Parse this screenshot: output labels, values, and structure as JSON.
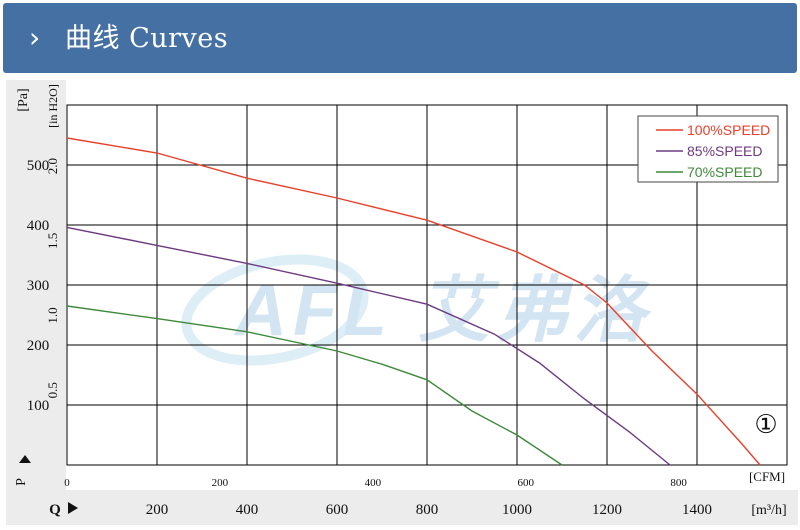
{
  "header": {
    "chevron_icon": "chevron-right-icon",
    "title": "曲线 Curves",
    "background_color": "#4470a4"
  },
  "watermark": {
    "description": "AFL logo watermark",
    "text": "AFL 艾弗洛"
  },
  "chart_data": {
    "type": "line",
    "grid": true,
    "legend_position": "top-right",
    "pressure_axis": {
      "unit_label": "[Pa]",
      "ticks": [
        100,
        200,
        300,
        400,
        500
      ],
      "range": [
        0,
        600
      ],
      "arrow_label": "P"
    },
    "pressure_inh2o_axis": {
      "unit_label": "[in H2O]",
      "ticks": [
        "0.5",
        "1.0",
        "1.5",
        "2.0"
      ],
      "values": [
        0.5,
        1.0,
        1.5,
        2.0
      ]
    },
    "flow_cfm_axis": {
      "unit_label": "[CFM]",
      "ticks": [
        0,
        200,
        400,
        600,
        800
      ]
    },
    "flow_m3h_axis": {
      "unit_label": "[m³/h]",
      "ticks": [
        200,
        400,
        600,
        800,
        1000,
        1200,
        1400
      ],
      "range": [
        0,
        1600
      ],
      "arrow_label": "Q"
    },
    "series": [
      {
        "name": "100%SPEED",
        "color": "#e8402a",
        "points": [
          [
            0,
            545
          ],
          [
            200,
            520
          ],
          [
            400,
            478
          ],
          [
            600,
            445
          ],
          [
            800,
            408
          ],
          [
            1000,
            355
          ],
          [
            1150,
            300
          ],
          [
            1200,
            270
          ],
          [
            1300,
            190
          ],
          [
            1400,
            118
          ],
          [
            1500,
            35
          ],
          [
            1540,
            0
          ]
        ]
      },
      {
        "name": "85%SPEED",
        "color": "#6e3a80",
        "points": [
          [
            0,
            396
          ],
          [
            200,
            366
          ],
          [
            400,
            336
          ],
          [
            600,
            303
          ],
          [
            800,
            268
          ],
          [
            950,
            218
          ],
          [
            1050,
            170
          ],
          [
            1150,
            110
          ],
          [
            1250,
            55
          ],
          [
            1340,
            0
          ]
        ]
      },
      {
        "name": "70%SPEED",
        "color": "#3d8a3a",
        "points": [
          [
            0,
            265
          ],
          [
            200,
            244
          ],
          [
            400,
            222
          ],
          [
            600,
            190
          ],
          [
            700,
            168
          ],
          [
            800,
            142
          ],
          [
            900,
            90
          ],
          [
            1000,
            50
          ],
          [
            1100,
            0
          ]
        ]
      }
    ],
    "annotation": "①"
  }
}
